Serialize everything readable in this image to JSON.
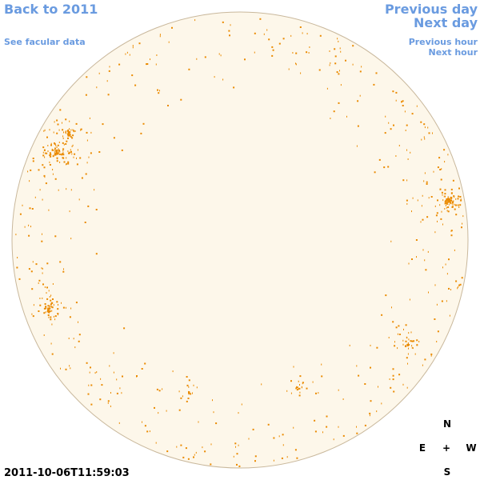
{
  "navigation": {
    "back": "Back to 2011",
    "facular": "See facular data",
    "previous_day": "Previous day",
    "next_day": "Next day",
    "previous_hour": "Previous hour",
    "next_hour": "Next hour"
  },
  "timestamp": "2011-10-06T11:59:03",
  "compass": {
    "north": "N",
    "east": "E",
    "center": "+",
    "west": "W",
    "south": "S"
  }
}
